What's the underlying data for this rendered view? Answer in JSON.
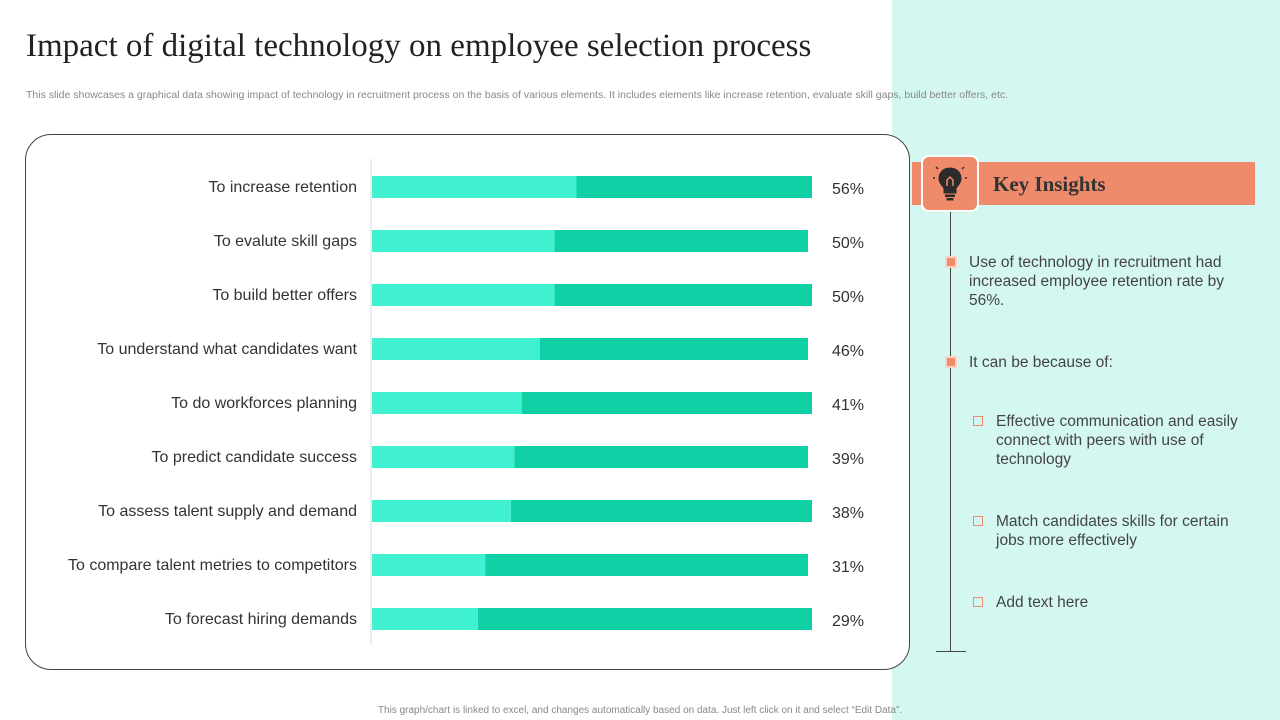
{
  "title": "Impact of digital technology on employee selection process",
  "subtitle": "This slide showcases a graphical data showing impact of technology in recruitment process on the basis of various elements. It includes elements like increase retention, evaluate skill gaps, build better offers, etc.",
  "chart_data": {
    "type": "bar",
    "orientation": "horizontal",
    "categories": [
      "To increase retention",
      "To evalute skill gaps",
      "To build better offers",
      "To understand what candidates want",
      "To do workforces planning",
      "To predict candidate success",
      "To assess talent supply and demand",
      "To compare talent metries to competitors",
      "To forecast hiring demands"
    ],
    "values": [
      56,
      50,
      50,
      46,
      41,
      39,
      38,
      31,
      29
    ],
    "value_labels": [
      "56%",
      "50%",
      "50%",
      "46%",
      "41%",
      "39%",
      "38%",
      "31%",
      "29%"
    ],
    "xlim": [
      0,
      100
    ],
    "grid": false,
    "legend": "none",
    "colors": {
      "segment_light": "#3ff1d1",
      "segment_dark": "#10d0a5"
    }
  },
  "insights": {
    "title": "Key Insights",
    "icon": "lightbulb-icon",
    "point1": "Use of technology in recruitment had increased employee retention rate by 56%.",
    "point2": "It can be because of:",
    "sub1": "Effective communication and easily connect with peers with use of technology",
    "sub2": "Match candidates skills for certain jobs more effectively",
    "sub3": "Add text here"
  },
  "footer": "This graph/chart is linked to excel, and changes automatically based on data. Just left click on it and select “Edit Data”.",
  "colors": {
    "accent": "#ef8a6b",
    "panel_bg": "#d4f7f1"
  }
}
